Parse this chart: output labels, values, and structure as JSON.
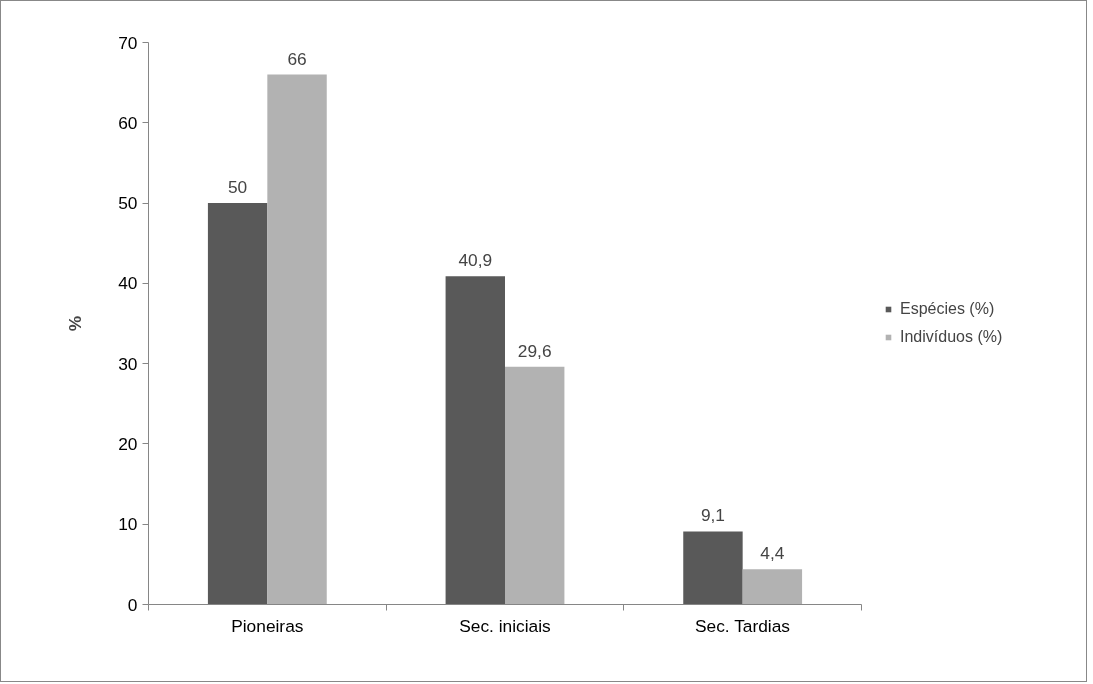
{
  "chart_data": {
    "type": "bar",
    "ylabel": "%",
    "categories": [
      "Pioneiras",
      "Sec. iniciais",
      "Sec. Tardias"
    ],
    "series": [
      {
        "name": "Espécies (%)",
        "color": "#595959",
        "values": [
          50,
          40.9,
          9.1
        ],
        "value_labels": [
          "50",
          "40,9",
          "9,1"
        ]
      },
      {
        "name": "Indivíduos (%)",
        "color": "#b2b2b2",
        "values": [
          66,
          29.6,
          4.4
        ],
        "value_labels": [
          "66",
          "29,6",
          "4,4"
        ]
      }
    ],
    "ylim": [
      0,
      70
    ],
    "yticks": [
      0,
      10,
      20,
      30,
      40,
      50,
      60,
      70
    ],
    "grid": false,
    "legend": "right"
  }
}
